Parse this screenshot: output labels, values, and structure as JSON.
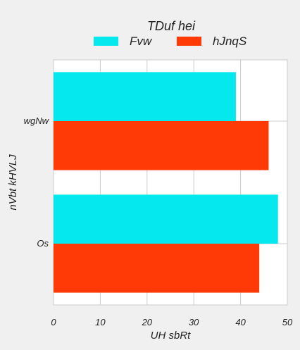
{
  "chart_data": {
    "type": "bar",
    "orientation": "horizontal",
    "categories": [
      "wgNw",
      "Os"
    ],
    "series": [
      {
        "name": "Fvw",
        "values": [
          39,
          48
        ],
        "color": "#05e8ee"
      },
      {
        "name": "hJnqS",
        "values": [
          46,
          44
        ],
        "color": "#ff3a06"
      }
    ],
    "xlabel": "UH sbRt",
    "ylabel": "nVbt kHVLJ",
    "xlim": [
      0,
      50
    ],
    "xticks": [
      0,
      10,
      20,
      30,
      40,
      50
    ],
    "grid": true,
    "legend": {
      "title": "TDuf hei",
      "placement": "top-center",
      "columns": 2
    }
  }
}
